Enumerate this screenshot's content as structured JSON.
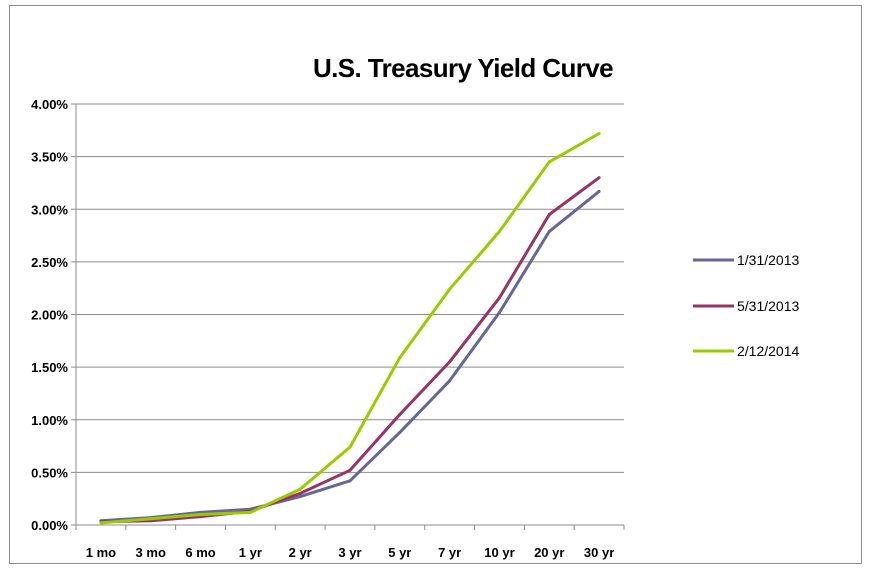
{
  "chart_data": {
    "type": "line",
    "title": "U.S. Treasury Yield Curve",
    "xlabel": "",
    "ylabel": "",
    "categories": [
      "1 mo",
      "3 mo",
      "6 mo",
      "1 yr",
      "2 yr",
      "3 yr",
      "5 yr",
      "7 yr",
      "10 yr",
      "20 yr",
      "30 yr"
    ],
    "y_ticks": [
      "0.00%",
      "0.50%",
      "1.00%",
      "1.50%",
      "2.00%",
      "2.50%",
      "3.00%",
      "3.50%",
      "4.00%"
    ],
    "ylim": [
      0,
      4.0
    ],
    "y_unit": "%",
    "grid": "horizontal",
    "legend_position": "right",
    "series": [
      {
        "name": "1/31/2013",
        "color": "#666699",
        "values": [
          0.04,
          0.07,
          0.12,
          0.15,
          0.27,
          0.42,
          0.88,
          1.37,
          2.02,
          2.79,
          3.17
        ]
      },
      {
        "name": "5/31/2013",
        "color": "#993366",
        "values": [
          0.03,
          0.04,
          0.08,
          0.13,
          0.3,
          0.52,
          1.05,
          1.55,
          2.16,
          2.95,
          3.3
        ]
      },
      {
        "name": "2/12/2014",
        "color": "#99cc00",
        "values": [
          0.02,
          0.06,
          0.1,
          0.12,
          0.34,
          0.74,
          1.59,
          2.24,
          2.79,
          3.45,
          3.72
        ]
      }
    ]
  }
}
